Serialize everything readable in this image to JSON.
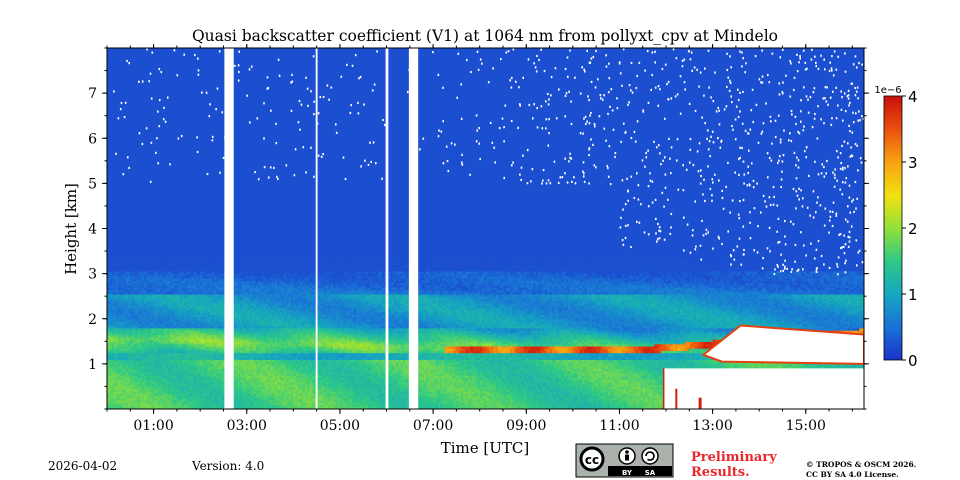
{
  "chart_data": {
    "type": "heatmap",
    "title": "Quasi backscatter coefficient (V1) at 1064 nm from pollyxt_cpv at Mindelo",
    "xlabel": "Time [UTC]",
    "ylabel": "Height [km]",
    "x_unit": "hours UTC",
    "xlim": [
      0,
      16.25
    ],
    "ylim": [
      0,
      8
    ],
    "x_ticks": [
      {
        "value": 1,
        "label": "01:00"
      },
      {
        "value": 3,
        "label": "03:00"
      },
      {
        "value": 5,
        "label": "05:00"
      },
      {
        "value": 7,
        "label": "07:00"
      },
      {
        "value": 9,
        "label": "09:00"
      },
      {
        "value": 11,
        "label": "11:00"
      },
      {
        "value": 13,
        "label": "13:00"
      },
      {
        "value": 15,
        "label": "15:00"
      }
    ],
    "y_ticks": [
      {
        "value": 1,
        "label": "1"
      },
      {
        "value": 2,
        "label": "2"
      },
      {
        "value": 3,
        "label": "3"
      },
      {
        "value": 4,
        "label": "4"
      },
      {
        "value": 5,
        "label": "5"
      },
      {
        "value": 6,
        "label": "6"
      },
      {
        "value": 7,
        "label": "7"
      }
    ],
    "colorbar": {
      "exponent_label": "1e−6",
      "range": [
        0,
        4
      ],
      "ticks": [
        {
          "value": 0,
          "label": "0"
        },
        {
          "value": 1,
          "label": "1"
        },
        {
          "value": 2,
          "label": "2"
        },
        {
          "value": 3,
          "label": "3"
        },
        {
          "value": 4,
          "label": "4"
        }
      ],
      "colors": [
        "#1b33c9",
        "#1a72d6",
        "#16a6c0",
        "#2fc985",
        "#93e03a",
        "#f2e10f",
        "#f7a213",
        "#ea4f10",
        "#c8100c"
      ]
    },
    "data_gaps_hours": [
      [
        2.52,
        2.72
      ],
      [
        4.48,
        4.52
      ],
      [
        5.98,
        6.04
      ],
      [
        6.48,
        6.68
      ]
    ],
    "layers": [
      {
        "name": "surface aerosol",
        "height_km": [
          0,
          1.1
        ],
        "value_range": [
          1.4,
          2.0
        ]
      },
      {
        "name": "elevated layer",
        "height_km": [
          1.2,
          1.8
        ],
        "value_range": [
          1.2,
          2.4
        ]
      },
      {
        "name": "aerosol top",
        "height_km": [
          2.5,
          3.0
        ],
        "value_range": [
          0.4,
          0.9
        ]
      },
      {
        "name": "cloud layer",
        "time_hours": [
          7.2,
          16.25
        ],
        "height_km": [
          1.0,
          2.0
        ],
        "value_range": [
          2.5,
          4.0
        ]
      }
    ]
  },
  "footer": {
    "date": "2026-04-02",
    "version": "Version: 4.0",
    "preliminary_line1": "Preliminary",
    "preliminary_line2": "Results.",
    "copyright_line1": "© TROPOS & OSCM 2026.",
    "copyright_line2": "CC BY SA 4.0 License.",
    "license_by": "BY",
    "license_sa": "SA",
    "license_cc": "cc",
    "preliminary_color": "#e8282c"
  }
}
